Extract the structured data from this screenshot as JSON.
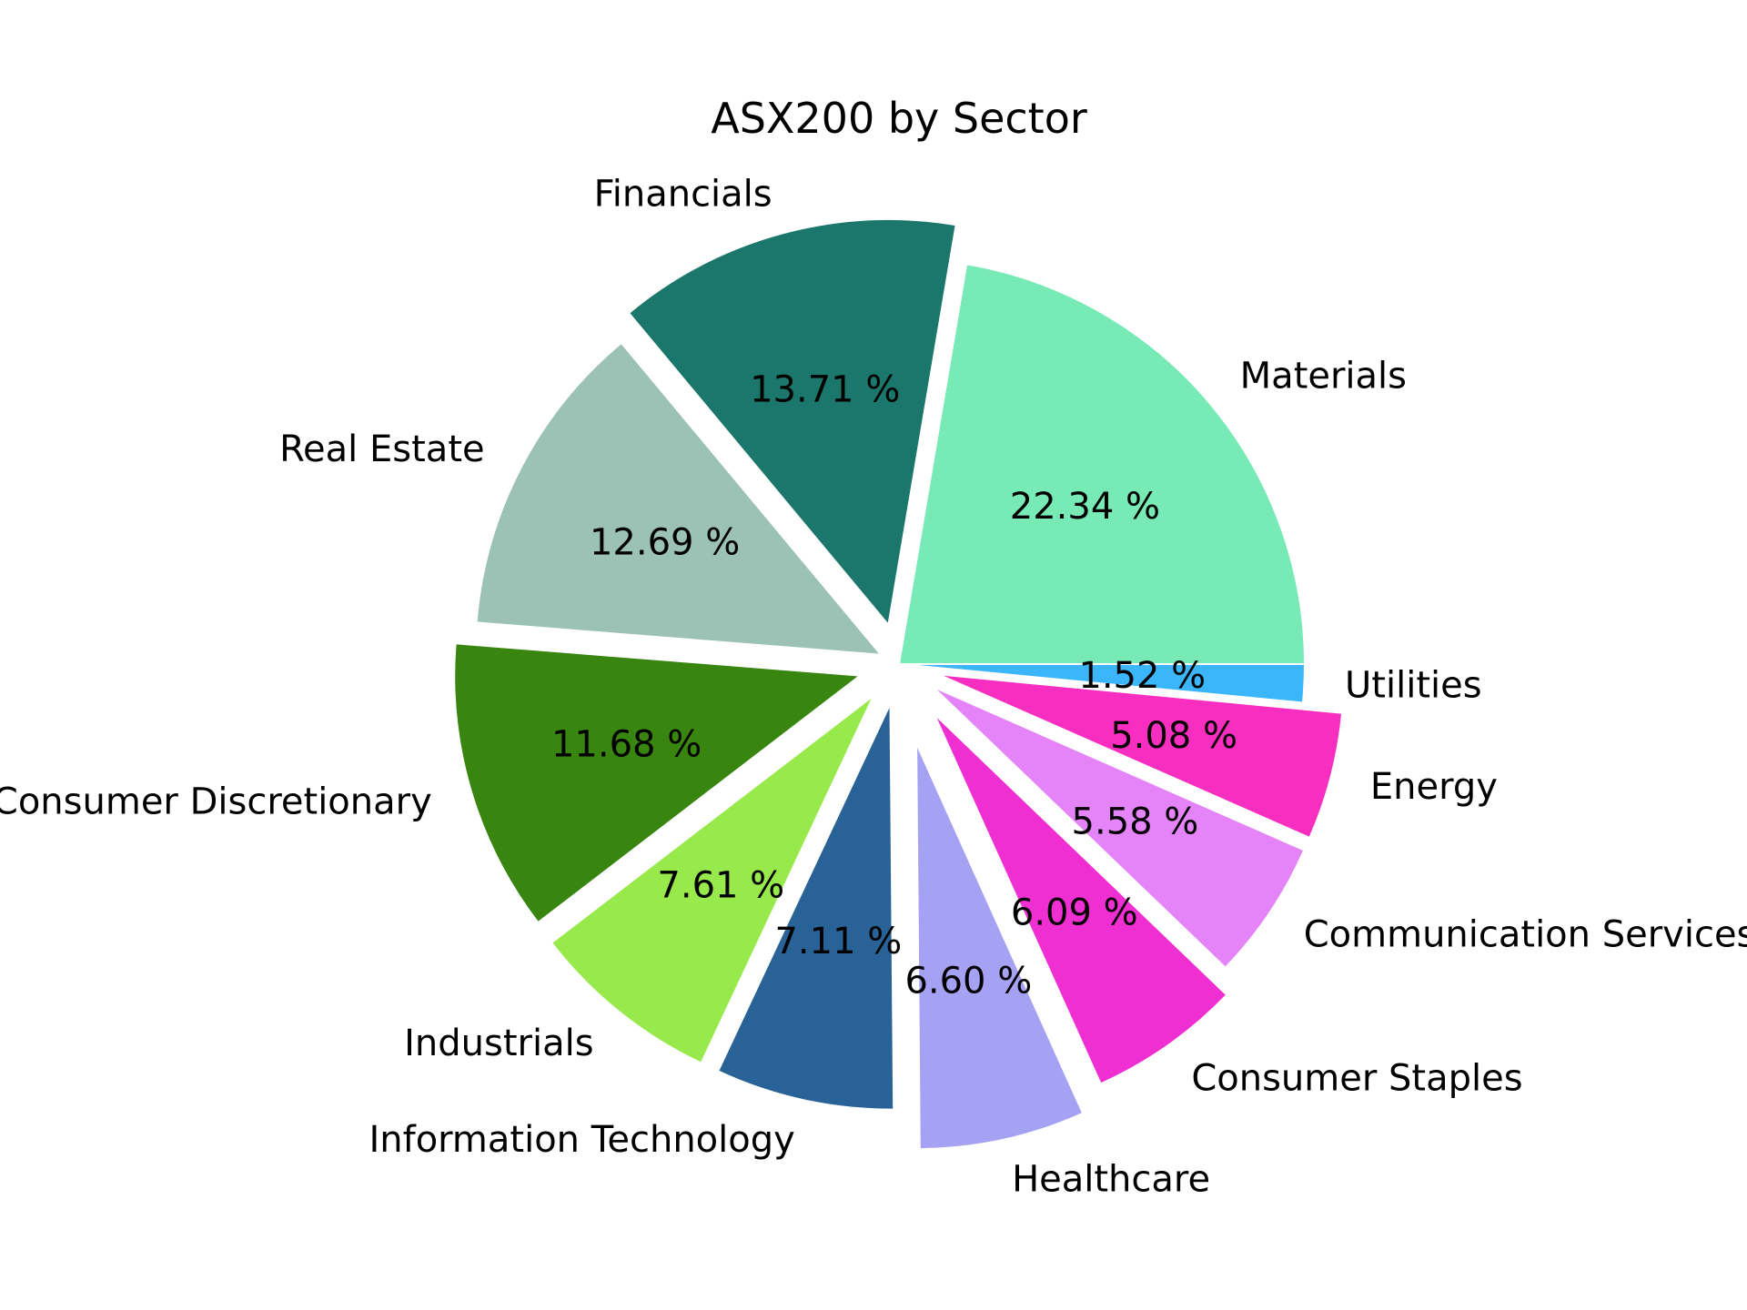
{
  "chart_data": {
    "type": "pie",
    "title": "ASX200 by Sector",
    "slices": [
      {
        "label": "Materials",
        "value": 22.34,
        "pct_text": "22.34 %",
        "color": "#77eab6",
        "explode": 0.0
      },
      {
        "label": "Financials",
        "value": 13.71,
        "pct_text": "13.71 %",
        "color": "#1b776b",
        "explode": 0.1
      },
      {
        "label": "Real Estate",
        "value": 12.69,
        "pct_text": "12.69 %",
        "color": "#9cc1b5",
        "explode": 0.05
      },
      {
        "label": "Consumer Discretionary",
        "value": 11.68,
        "pct_text": "11.68 %",
        "color": "#388510",
        "explode": 0.1
      },
      {
        "label": "Industrials",
        "value": 7.61,
        "pct_text": "7.61 %",
        "color": "#98ea4c",
        "explode": 0.1
      },
      {
        "label": "Information Technology",
        "value": 7.11,
        "pct_text": "7.11 %",
        "color": "#286296",
        "explode": 0.1
      },
      {
        "label": "Healthcare",
        "value": 6.6,
        "pct_text": "6.60 %",
        "color": "#a6a2f3",
        "explode": 0.2
      },
      {
        "label": "Consumer Staples",
        "value": 6.09,
        "pct_text": "6.09 %",
        "color": "#f02fd2",
        "explode": 0.15
      },
      {
        "label": "Communication Services",
        "value": 5.58,
        "pct_text": "5.58 %",
        "color": "#e583f8",
        "explode": 0.1
      },
      {
        "label": "Energy",
        "value": 5.08,
        "pct_text": "5.08 %",
        "color": "#f82ec0",
        "explode": 0.1
      },
      {
        "label": "Utilities",
        "value": 1.52,
        "pct_text": "1.52 %",
        "color": "#3bb5fb",
        "explode": 0.0
      }
    ],
    "start_angle_deg": 0,
    "direction": "counterclockwise",
    "legend": "none"
  }
}
